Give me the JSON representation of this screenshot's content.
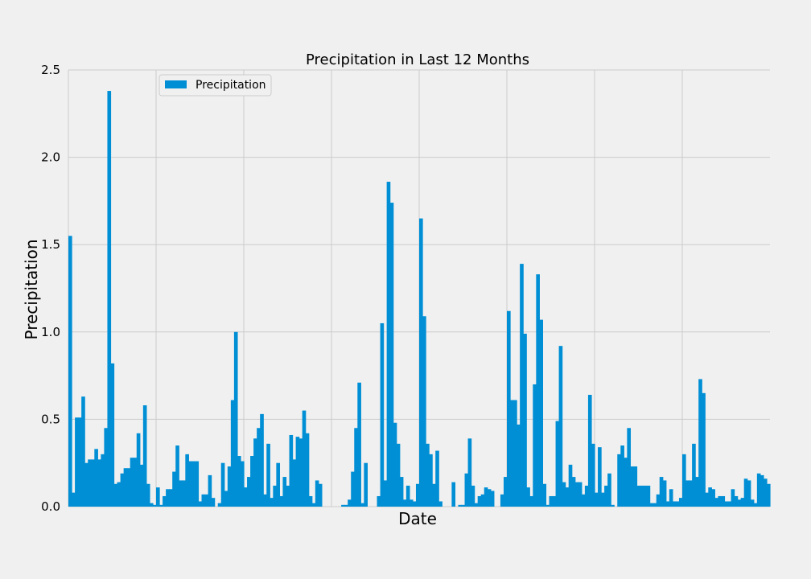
{
  "chart_data": {
    "type": "bar",
    "title": "Precipitation in Last 12 Months",
    "xlabel": "Date",
    "ylabel": "Precipitation",
    "ylim": [
      0,
      2.5
    ],
    "yticks": [
      "0.0",
      "0.5",
      "1.0",
      "1.5",
      "2.0",
      "2.5"
    ],
    "legend": {
      "label": "Precipitation",
      "position": "upper-left"
    },
    "grid": true,
    "bar_color": "#008fd5",
    "series": [
      {
        "name": "Precipitation",
        "values": [
          1.55,
          0.08,
          0.51,
          0.51,
          0.63,
          0.25,
          0.27,
          0.27,
          0.33,
          0.27,
          0.3,
          0.45,
          2.38,
          0.82,
          0.13,
          0.14,
          0.19,
          0.22,
          0.22,
          0.28,
          0.28,
          0.42,
          0.24,
          0.58,
          0.13,
          0.02,
          0.01,
          0.11,
          0.01,
          0.06,
          0.1,
          0.1,
          0.2,
          0.35,
          0.15,
          0.15,
          0.3,
          0.26,
          0.26,
          0.26,
          0.03,
          0.07,
          0.07,
          0.18,
          0.05,
          0.0,
          0.02,
          0.25,
          0.09,
          0.23,
          0.61,
          1.0,
          0.29,
          0.26,
          0.11,
          0.17,
          0.29,
          0.39,
          0.45,
          0.53,
          0.07,
          0.36,
          0.05,
          0.12,
          0.25,
          0.06,
          0.17,
          0.12,
          0.41,
          0.27,
          0.4,
          0.39,
          0.55,
          0.42,
          0.06,
          0.02,
          0.15,
          0.13,
          0.0,
          0.0,
          0.0,
          0.0,
          0.0,
          0.0,
          0.01,
          0.01,
          0.04,
          0.2,
          0.45,
          0.71,
          0.02,
          0.25,
          0.0,
          0.0,
          0.0,
          0.06,
          1.05,
          0.15,
          1.86,
          1.74,
          0.48,
          0.36,
          0.17,
          0.04,
          0.12,
          0.04,
          0.03,
          0.13,
          1.65,
          1.09,
          0.36,
          0.3,
          0.13,
          0.32,
          0.03,
          0.0,
          0.0,
          0.0,
          0.14,
          0.0,
          0.01,
          0.01,
          0.19,
          0.39,
          0.12,
          0.02,
          0.06,
          0.07,
          0.11,
          0.1,
          0.09,
          0.0,
          0.0,
          0.07,
          0.17,
          1.12,
          0.61,
          0.61,
          0.47,
          1.39,
          0.99,
          0.11,
          0.06,
          0.7,
          1.33,
          1.07,
          0.13,
          0.01,
          0.06,
          0.06,
          0.49,
          0.92,
          0.14,
          0.11,
          0.24,
          0.17,
          0.14,
          0.14,
          0.07,
          0.12,
          0.64,
          0.36,
          0.08,
          0.34,
          0.08,
          0.12,
          0.19,
          0.01,
          0.0,
          0.3,
          0.35,
          0.28,
          0.45,
          0.23,
          0.23,
          0.12,
          0.12,
          0.12,
          0.12,
          0.02,
          0.02,
          0.07,
          0.17,
          0.15,
          0.03,
          0.1,
          0.03,
          0.03,
          0.05,
          0.3,
          0.15,
          0.15,
          0.36,
          0.17,
          0.73,
          0.65,
          0.08,
          0.11,
          0.1,
          0.05,
          0.06,
          0.06,
          0.03,
          0.03,
          0.1,
          0.06,
          0.04,
          0.05,
          0.16,
          0.15,
          0.04,
          0.02,
          0.19,
          0.18,
          0.16,
          0.13
        ]
      }
    ]
  }
}
